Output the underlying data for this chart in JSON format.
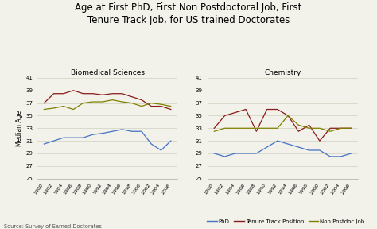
{
  "title": "Age at First PhD, First Non Postdoctoral Job, First\nTenure Track Job, for US trained Doctorates",
  "source_text": "Source: Survey of Earned Doctorates",
  "years": [
    1980,
    1982,
    1984,
    1986,
    1988,
    1990,
    1992,
    1994,
    1996,
    1998,
    2000,
    2002,
    2004,
    2006
  ],
  "bio_phd": [
    30.5,
    31.0,
    31.5,
    31.5,
    31.5,
    32.0,
    32.2,
    32.5,
    32.8,
    32.5,
    32.5,
    30.5,
    29.5,
    31.0
  ],
  "bio_tenure": [
    37.0,
    38.5,
    38.5,
    39.0,
    38.5,
    38.5,
    38.3,
    38.5,
    38.5,
    38.0,
    37.5,
    36.5,
    36.5,
    36.0
  ],
  "bio_nonpostdoc": [
    36.0,
    36.2,
    36.5,
    36.0,
    37.0,
    37.2,
    37.2,
    37.5,
    37.2,
    37.0,
    36.5,
    37.0,
    36.8,
    36.5
  ],
  "chem_phd": [
    29.0,
    28.5,
    29.0,
    29.0,
    29.0,
    30.0,
    31.0,
    30.5,
    30.0,
    29.5,
    29.5,
    28.5,
    28.5,
    29.0
  ],
  "chem_tenure": [
    33.0,
    35.0,
    35.5,
    36.0,
    32.5,
    36.0,
    36.0,
    35.0,
    32.5,
    33.5,
    31.0,
    33.0,
    33.0,
    33.0
  ],
  "chem_nonpostdoc": [
    32.5,
    33.0,
    33.0,
    33.0,
    33.0,
    33.0,
    33.0,
    35.0,
    33.5,
    33.0,
    33.0,
    32.5,
    33.0,
    33.0
  ],
  "color_phd": "#4472c4",
  "color_tenure": "#8b1a1a",
  "color_nonpostdoc": "#808000",
  "ylim": [
    25,
    41
  ],
  "yticks": [
    25,
    27,
    29,
    31,
    33,
    35,
    37,
    39,
    41
  ],
  "bg_color": "#f2f2ea",
  "plot_bg_color": "#f2f2ea",
  "subplot1_title": "Biomedical Sciences",
  "subplot2_title": "Chemistry",
  "ylabel": "Median Age",
  "legend_labels": [
    "PhD",
    "Tenure Track Position",
    "Non Postdoc Job"
  ]
}
